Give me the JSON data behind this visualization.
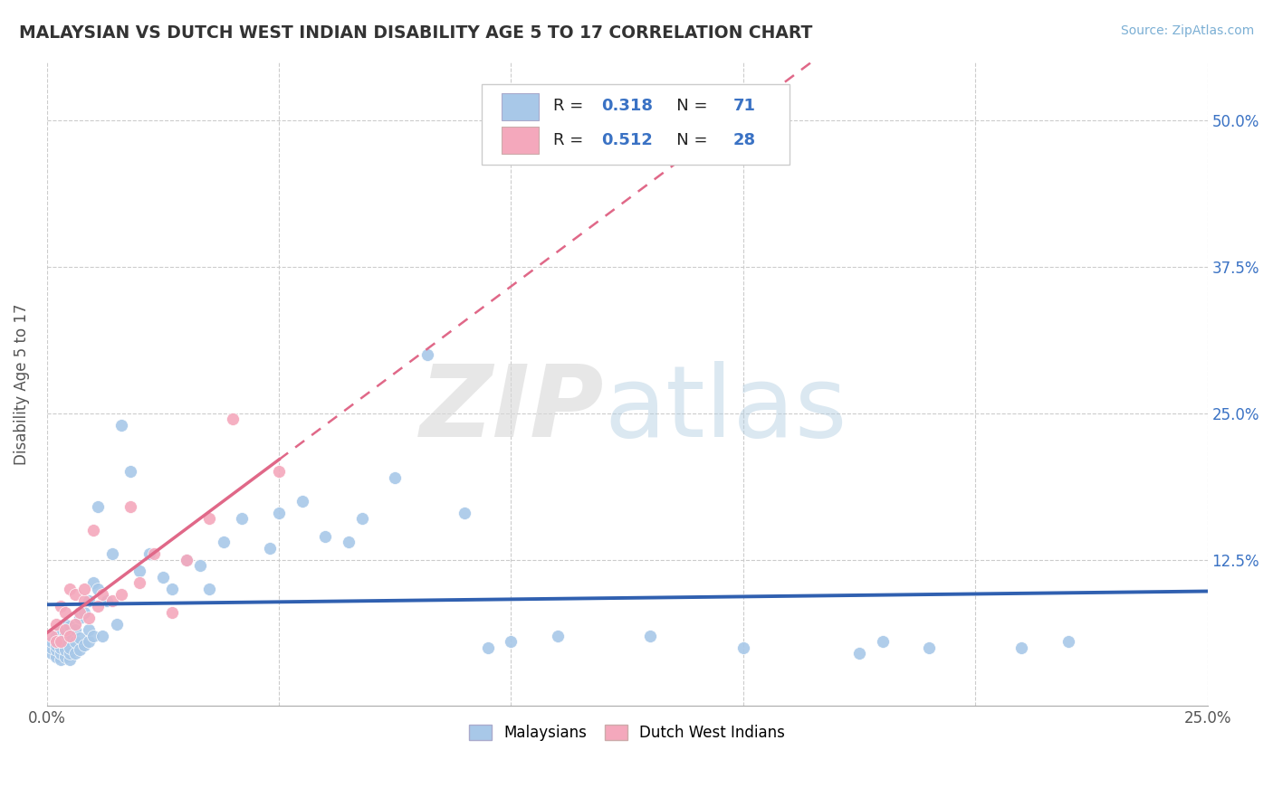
{
  "title": "MALAYSIAN VS DUTCH WEST INDIAN DISABILITY AGE 5 TO 17 CORRELATION CHART",
  "source": "Source: ZipAtlas.com",
  "ylabel": "Disability Age 5 to 17",
  "xlim": [
    0.0,
    0.25
  ],
  "ylim": [
    0.0,
    0.55
  ],
  "xticks": [
    0.0,
    0.05,
    0.1,
    0.15,
    0.2,
    0.25
  ],
  "xtick_labels": [
    "0.0%",
    "",
    "",
    "",
    "",
    "25.0%"
  ],
  "yticks": [
    0.0,
    0.125,
    0.25,
    0.375,
    0.5
  ],
  "ytick_labels": [
    "",
    "12.5%",
    "25.0%",
    "37.5%",
    "50.0%"
  ],
  "blue_r": "0.318",
  "blue_n": "71",
  "pink_r": "0.512",
  "pink_n": "28",
  "blue_color": "#a8c8e8",
  "pink_color": "#f4a8bc",
  "blue_line_color": "#3060b0",
  "pink_line_color": "#e06888",
  "legend_text_color": "#333333",
  "legend_value_color": "#3a72c4",
  "background_color": "#ffffff",
  "grid_color": "#cccccc",
  "title_color": "#333333",
  "source_color": "#7bafd4",
  "ytick_color": "#3a72c4",
  "xtick_color": "#555555",
  "blue_x": [
    0.001,
    0.001,
    0.001,
    0.002,
    0.002,
    0.002,
    0.002,
    0.003,
    0.003,
    0.003,
    0.003,
    0.003,
    0.004,
    0.004,
    0.004,
    0.004,
    0.004,
    0.005,
    0.005,
    0.005,
    0.005,
    0.005,
    0.006,
    0.006,
    0.006,
    0.007,
    0.007,
    0.007,
    0.008,
    0.008,
    0.009,
    0.009,
    0.009,
    0.01,
    0.01,
    0.011,
    0.011,
    0.012,
    0.013,
    0.014,
    0.015,
    0.016,
    0.018,
    0.02,
    0.022,
    0.025,
    0.027,
    0.03,
    0.033,
    0.035,
    0.038,
    0.042,
    0.048,
    0.05,
    0.055,
    0.06,
    0.065,
    0.068,
    0.075,
    0.082,
    0.09,
    0.095,
    0.1,
    0.11,
    0.13,
    0.15,
    0.175,
    0.18,
    0.19,
    0.21,
    0.22
  ],
  "blue_y": [
    0.045,
    0.05,
    0.055,
    0.042,
    0.048,
    0.052,
    0.06,
    0.04,
    0.045,
    0.05,
    0.055,
    0.065,
    0.042,
    0.048,
    0.055,
    0.062,
    0.07,
    0.04,
    0.045,
    0.05,
    0.06,
    0.068,
    0.045,
    0.055,
    0.065,
    0.048,
    0.058,
    0.075,
    0.052,
    0.08,
    0.055,
    0.065,
    0.09,
    0.06,
    0.105,
    0.1,
    0.17,
    0.06,
    0.09,
    0.13,
    0.07,
    0.24,
    0.2,
    0.115,
    0.13,
    0.11,
    0.1,
    0.125,
    0.12,
    0.1,
    0.14,
    0.16,
    0.135,
    0.165,
    0.175,
    0.145,
    0.14,
    0.16,
    0.195,
    0.3,
    0.165,
    0.05,
    0.055,
    0.06,
    0.06,
    0.05,
    0.045,
    0.055,
    0.05,
    0.05,
    0.055
  ],
  "pink_x": [
    0.001,
    0.002,
    0.002,
    0.003,
    0.003,
    0.004,
    0.004,
    0.005,
    0.005,
    0.006,
    0.006,
    0.007,
    0.008,
    0.008,
    0.009,
    0.01,
    0.011,
    0.012,
    0.014,
    0.016,
    0.018,
    0.02,
    0.023,
    0.027,
    0.03,
    0.035,
    0.04,
    0.05
  ],
  "pink_y": [
    0.06,
    0.055,
    0.07,
    0.055,
    0.085,
    0.065,
    0.08,
    0.06,
    0.1,
    0.07,
    0.095,
    0.08,
    0.09,
    0.1,
    0.075,
    0.15,
    0.085,
    0.095,
    0.09,
    0.095,
    0.17,
    0.105,
    0.13,
    0.08,
    0.125,
    0.16,
    0.245,
    0.2
  ],
  "figsize": [
    14.06,
    8.92
  ],
  "dpi": 100
}
